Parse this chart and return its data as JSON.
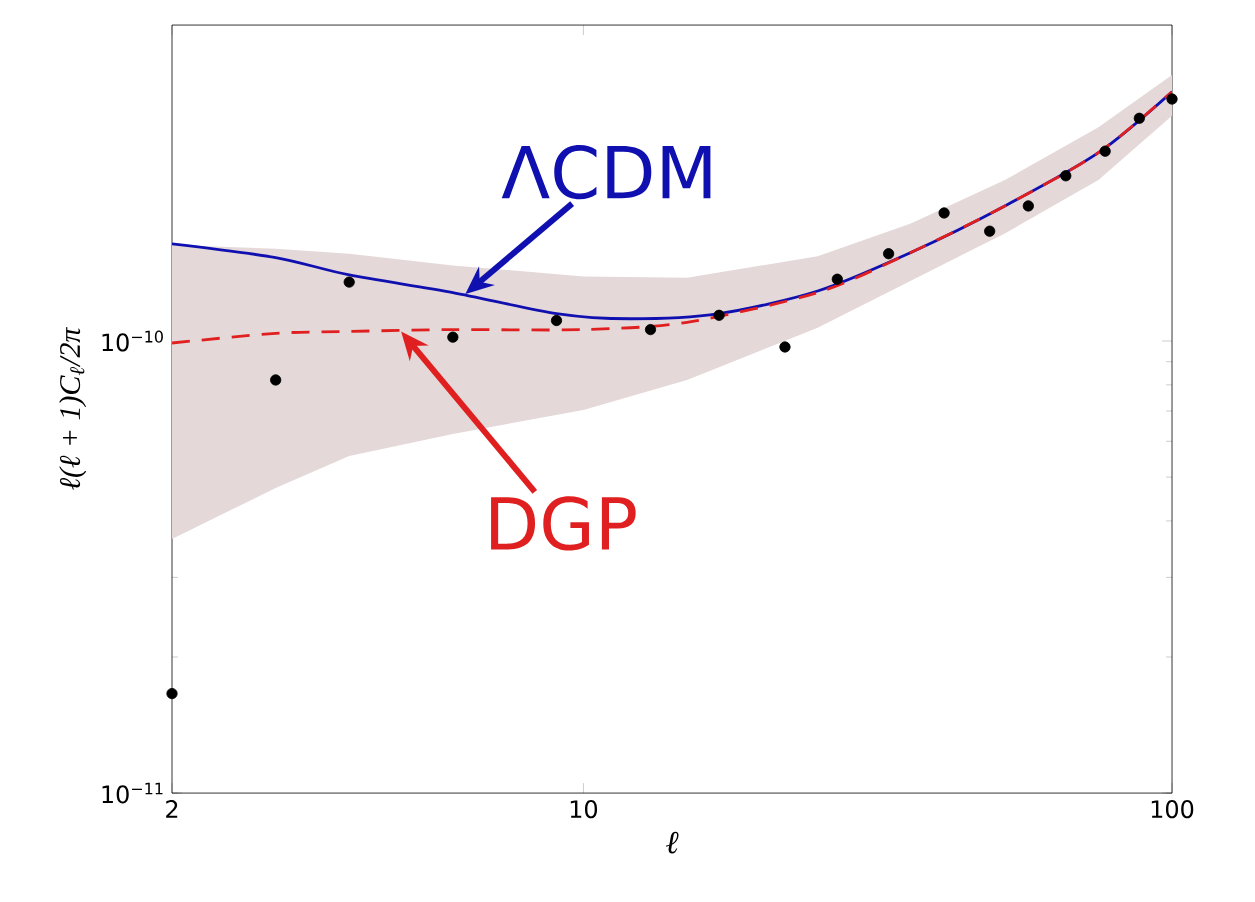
{
  "chart_data": {
    "type": "line",
    "xlabel": "ℓ",
    "ylabel": "ℓ(ℓ + 1)C$_{ℓ}$/2π",
    "log": "xy",
    "xlim": [
      2,
      100
    ],
    "ylim": [
      1e-11,
      5e-10
    ],
    "xticks": [
      2,
      10,
      100
    ],
    "yticks": [
      {
        "value": 1e-11,
        "label": "10$^{−11}$"
      },
      {
        "value": 1e-10,
        "label": "10$^{−10}$"
      }
    ],
    "series": [
      {
        "type": "scatter",
        "color": "#000000",
        "x": [
          2,
          3,
          4,
          6,
          9,
          13,
          17,
          22,
          27,
          33,
          41,
          49,
          57,
          66,
          77,
          88,
          100
        ],
        "values": [
          1.66e-11,
          8.2e-11,
          1.35e-10,
          1.02e-10,
          1.11e-10,
          1.06e-10,
          1.14e-10,
          9.7e-11,
          1.37e-10,
          1.56e-10,
          1.92e-10,
          1.75e-10,
          1.99e-10,
          2.32e-10,
          2.63e-10,
          3.11e-10,
          3.43e-10
        ]
      },
      {
        "color": "#1010b0",
        "line_style": "solid",
        "x": [
          2,
          3,
          4,
          6,
          9,
          12,
          17,
          25,
          36,
          52,
          75,
          100
        ],
        "values": [
          1.64e-10,
          1.53e-10,
          1.4e-10,
          1.28e-10,
          1.15e-10,
          1.12e-10,
          1.15e-10,
          1.29e-10,
          1.57e-10,
          1.99e-10,
          2.61e-10,
          3.56e-10
        ]
      },
      {
        "color": "#e02020",
        "line_style": "dashed",
        "x": [
          2,
          3,
          4,
          6,
          10,
          15,
          25,
          36,
          52,
          75,
          100
        ],
        "values": [
          9.9e-11,
          1.04e-10,
          1.05e-10,
          1.06e-10,
          1.06e-10,
          1.1e-10,
          1.28e-10,
          1.57e-10,
          1.99e-10,
          2.61e-10,
          3.56e-10
        ],
        "lower": [
          3.65e-11,
          4.73e-11,
          5.57e-11,
          6.23e-11,
          7.04e-11,
          8.2e-11,
          1.07e-10,
          1.36e-10,
          1.73e-10,
          2.27e-10,
          3.15e-10
        ],
        "upper": [
          1.63e-10,
          1.6e-10,
          1.56e-10,
          1.47e-10,
          1.39e-10,
          1.38e-10,
          1.54e-10,
          1.82e-10,
          2.27e-10,
          2.97e-10,
          3.88e-10
        ]
      }
    ],
    "annotations": [
      {
        "text": "ΛCDM",
        "x": 6.3,
        "y": 1.27e-10
      },
      {
        "text": "DGP",
        "x": 4.9,
        "y": 1.05e-10
      }
    ]
  }
}
